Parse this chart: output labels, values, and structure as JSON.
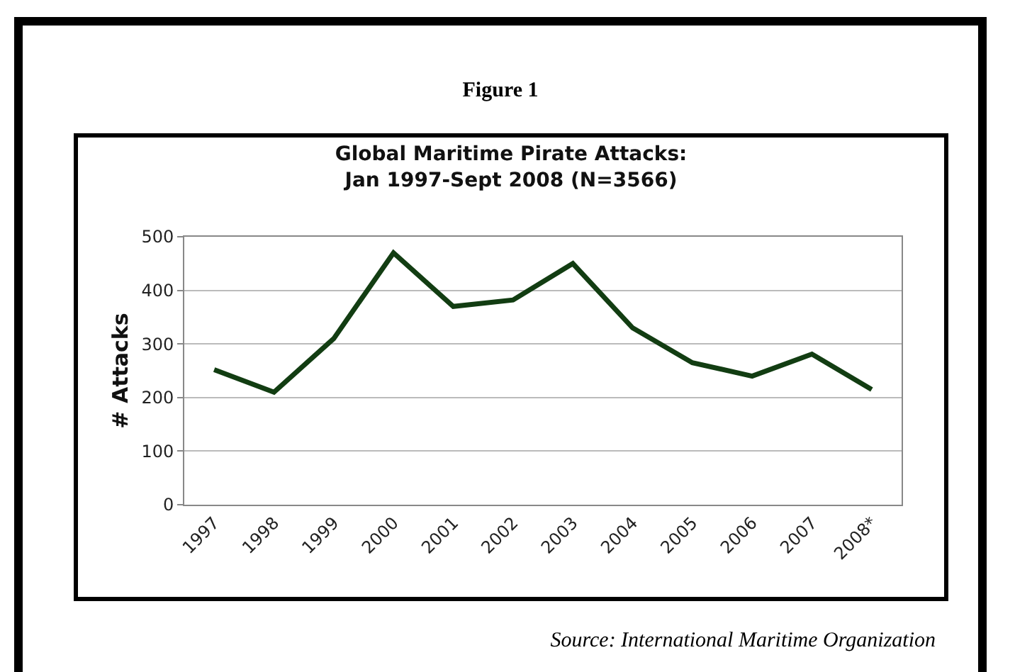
{
  "chart_data": {
    "type": "line",
    "title": "Global Maritime Pirate Attacks:\nJan 1997-Sept 2008 (N=3566)",
    "ylabel": "# Attacks",
    "categories": [
      "1997",
      "1998",
      "1999",
      "2000",
      "2001",
      "2002",
      "2003",
      "2004",
      "2005",
      "2006",
      "2007",
      "2008*"
    ],
    "series": [
      {
        "color": "#123d12",
        "values": [
          252,
          210,
          310,
          470,
          370,
          382,
          450,
          330,
          265,
          240,
          281,
          215
        ]
      }
    ],
    "ylim": [
      0,
      500
    ],
    "yticks": [
      0,
      100,
      200,
      300,
      400,
      500
    ],
    "grid": "y",
    "marker": "none",
    "line_style": "solid",
    "annotations": [
      "Figure 1",
      "Source: International Maritime Organization"
    ]
  }
}
